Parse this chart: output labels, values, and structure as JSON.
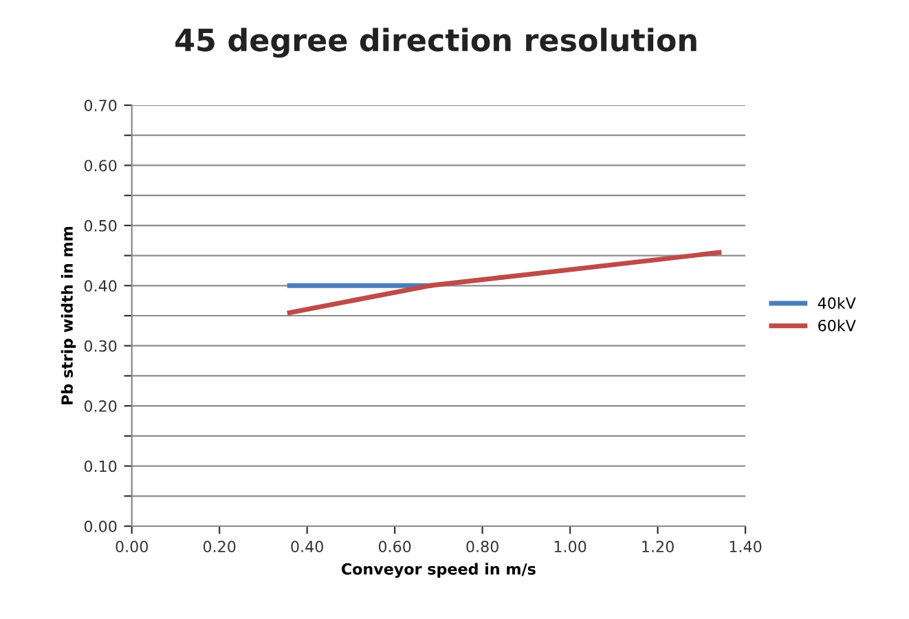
{
  "chart_data": {
    "type": "line",
    "title": "45 degree direction resolution",
    "xlabel": "Conveyor speed in m/s",
    "ylabel": "Pb strip width in mm",
    "series": [
      {
        "name": "40kV",
        "color": "#4a7ebb",
        "x": [
          0.36,
          0.68
        ],
        "values": [
          0.4,
          0.4
        ]
      },
      {
        "name": "60kV",
        "color": "#be4b48",
        "x": [
          0.36,
          0.68,
          1.34
        ],
        "values": [
          0.355,
          0.4,
          0.455
        ]
      }
    ],
    "xlim": [
      0,
      1.4
    ],
    "xticks": [
      {
        "value": 0,
        "label": "0.00"
      },
      {
        "value": 0.2,
        "label": "0.20"
      },
      {
        "value": 0.4,
        "label": "0.40"
      },
      {
        "value": 0.6,
        "label": "0.60"
      },
      {
        "value": 0.8,
        "label": "0.80"
      },
      {
        "value": 1.0,
        "label": "1.00"
      },
      {
        "value": 1.2,
        "label": "1.20"
      },
      {
        "value": 1.4,
        "label": "1.40"
      }
    ],
    "ylim": [
      0,
      0.7
    ],
    "yticks": [
      {
        "value": 0,
        "label": "0.00"
      },
      {
        "value": 0.05,
        "label": null
      },
      {
        "value": 0.1,
        "label": "0.10"
      },
      {
        "value": 0.15,
        "label": null
      },
      {
        "value": 0.2,
        "label": "0.20"
      },
      {
        "value": 0.25,
        "label": null
      },
      {
        "value": 0.3,
        "label": "0.30"
      },
      {
        "value": 0.35,
        "label": null
      },
      {
        "value": 0.4,
        "label": "0.40"
      },
      {
        "value": 0.45,
        "label": null
      },
      {
        "value": 0.5,
        "label": "0.50"
      },
      {
        "value": 0.55,
        "label": null
      },
      {
        "value": 0.6,
        "label": "0.60"
      },
      {
        "value": 0.65,
        "label": null
      },
      {
        "value": 0.7,
        "label": "0.70"
      }
    ],
    "grid": "y",
    "legend": "right",
    "marker": "none",
    "line_style": "solid"
  }
}
